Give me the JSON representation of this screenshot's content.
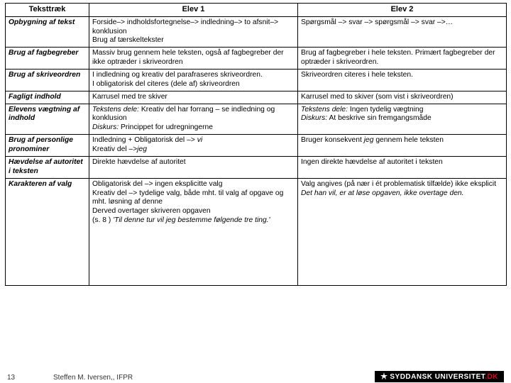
{
  "header": {
    "c0": "Teksttræk",
    "c1": "Elev 1",
    "c2": "Elev 2"
  },
  "rows": [
    {
      "label": "Opbygning af tekst",
      "e1": "Forside–> indholdsfortegnelse–> indledning–> to afsnit–> konklusion\nBrug af tærskeltekster",
      "e2": "Spørgsmål –> svar –> spørgsmål –> svar –>…"
    },
    {
      "label": "Brug af fagbegreber",
      "e1": "Massiv brug gennem hele teksten, også af fagbegreber der ikke optræder i skriveordren",
      "e2": "Brug af fagbegreber i hele teksten. Primært fagbegreber der optræder i skriveordren."
    },
    {
      "label": "Brug af skriveordren",
      "e1": "I indledning og kreativ del parafraseres skriveordren.\nI obligatorisk del citeres (dele af) skriveordren",
      "e2": "Skriveordren citeres i hele teksten."
    },
    {
      "label": "Fagligt indhold",
      "e1": "Karrusel med tre skiver",
      "e2": "Karrusel med to skiver (som vist i skriveordren)"
    },
    {
      "label": "Elevens vægtning af indhold",
      "e1": "<span class='ital'>Tekstens dele:</span> Kreativ del har forrang – se indledning og konklusion\n<span class='ital'>Diskurs:</span> Princippet for udregningerne",
      "e2": "<span class='ital'>Tekstens dele:</span> Ingen tydelig vægtning\n<span class='ital'>Diskurs:</span> At beskrive sin fremgangsmåde"
    },
    {
      "label": "Brug af personlige pronominer",
      "e1": "Indledning + Obligatorisk del –> <span class='ital'>vi</span>\nKreativ del –><span class='ital'>jeg</span>",
      "e2": "Bruger konsekvent <span class='ital'>jeg</span> gennem hele teksten"
    },
    {
      "label": "Hævdelse af autoritet i teksten",
      "e1": "Direkte hævdelse af autoritet",
      "e2": "Ingen direkte hævdelse af autoritet i teksten"
    },
    {
      "label": "Karakteren af valg",
      "e1": "Obligatorisk del –> ingen eksplicitte valg\nKreativ del –> tydelige valg, både mht. til valg af opgave og mht. løsning af denne\nDerved overtager skriveren opgaven\n (s. 8 ) <span class='ital'>'Til denne tur vil jeg bestemme følgende tre ting.'</span>",
      "e2": "Valg angives (på nær i ét problematisk tilfælde) ikke eksplicit\n<span class='ital'>Det han vil, er at løse opgaven, ikke overtage den.</span>",
      "tall": true
    }
  ],
  "footer": {
    "page": "13",
    "author": "Steffen M. Iversen,, IFPR",
    "logo_a": "SYDDANSK UNIVERSITET",
    "logo_b": ".DK"
  }
}
